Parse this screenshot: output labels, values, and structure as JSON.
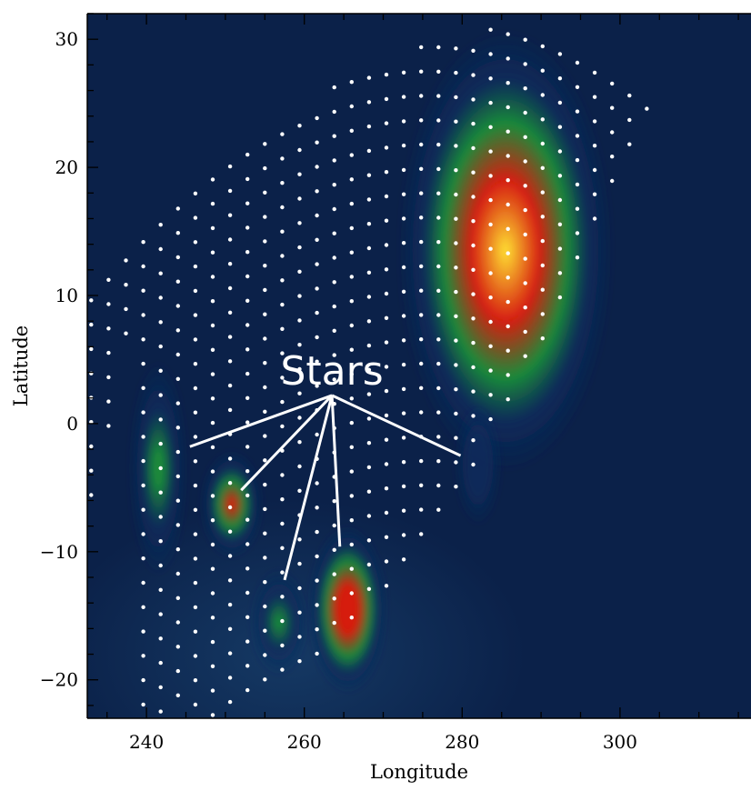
{
  "chart_data": {
    "type": "heatmap",
    "xlabel": "Longitude",
    "ylabel": "Latitude",
    "xlim": [
      232.5,
      316.6
    ],
    "ylim": [
      -23.0,
      32.0
    ],
    "xticks": [
      240,
      260,
      280,
      300
    ],
    "yticks": [
      -20,
      -10,
      0,
      10,
      20,
      30
    ],
    "xtick_labels": [
      "240",
      "260",
      "280",
      "300"
    ],
    "ytick_labels": [
      "−20",
      "−10",
      "0",
      "10",
      "20",
      "30"
    ],
    "colors": {
      "background": "#0b2149",
      "low": "#0d2b5c",
      "mid": "#1a8a3a",
      "high": "#d61d10",
      "peak": "#ffe233",
      "points": "#ffffff"
    },
    "sources": [
      {
        "lon": 285.5,
        "lat": 13.5,
        "peak": 1.0,
        "sigma_lon": 5.2,
        "sigma_lat": 6.6
      },
      {
        "lon": 265.5,
        "lat": -14.5,
        "peak": 0.95,
        "sigma_lon": 1.9,
        "sigma_lat": 2.5
      },
      {
        "lon": 250.8,
        "lat": -6.3,
        "peak": 0.72,
        "sigma_lon": 1.5,
        "sigma_lat": 1.6
      },
      {
        "lon": 241.5,
        "lat": -3.5,
        "peak": 0.5,
        "sigma_lon": 1.4,
        "sigma_lat": 3.2
      },
      {
        "lon": 256.8,
        "lat": -15.5,
        "peak": 0.45,
        "sigma_lon": 1.4,
        "sigma_lat": 1.6
      },
      {
        "lon": 282.0,
        "lat": -3.2,
        "peak": 0.4,
        "sigma_lon": 1.1,
        "sigma_lat": 1.8
      }
    ],
    "annotations": [
      {
        "text": "Stars",
        "pointer_origin": [
          263.5,
          2.2
        ],
        "pointer_targets": [
          [
            245.5,
            -1.8
          ],
          [
            252.0,
            -5.2
          ],
          [
            257.5,
            -12.2
          ],
          [
            264.5,
            -9.6
          ],
          [
            279.8,
            -2.5
          ]
        ]
      }
    ]
  }
}
